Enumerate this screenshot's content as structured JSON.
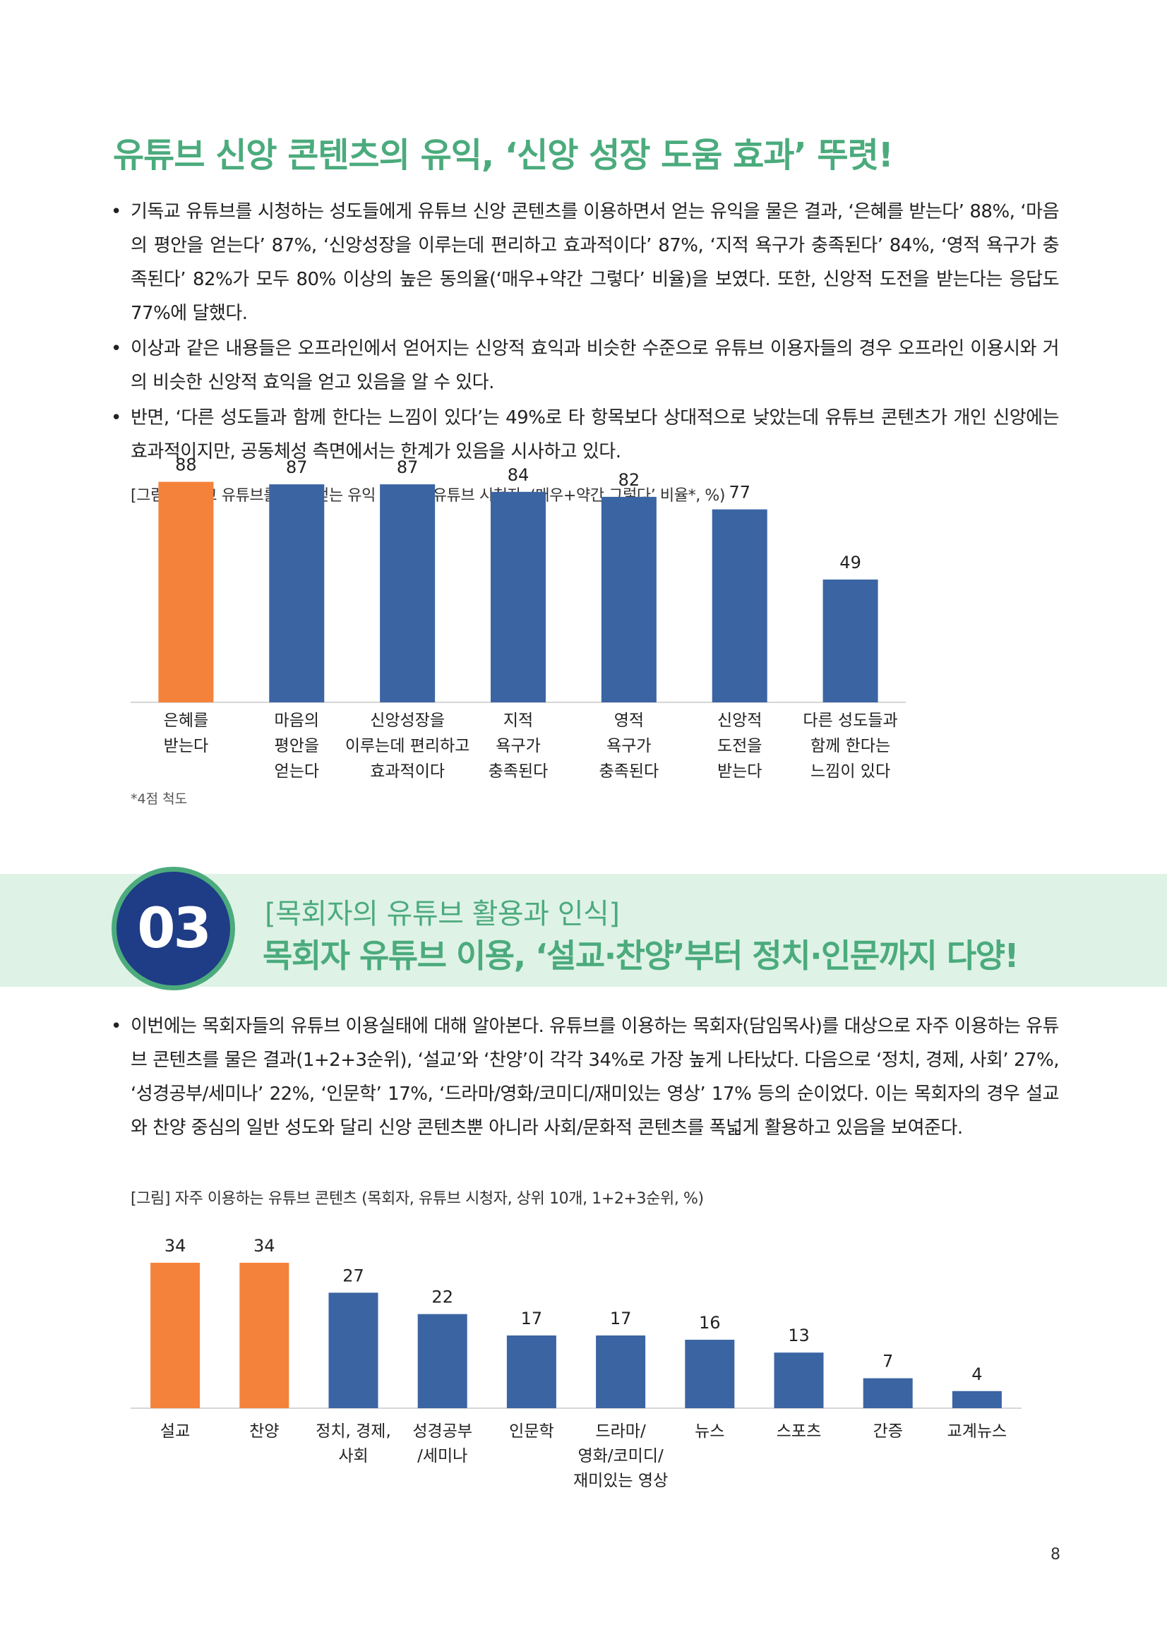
{
  "heading1": "유튜브 신앙 콘텐츠의 유익, ‘신앙 성장 도움 효과’ 뚜렷!",
  "bullets1": [
    "기독교 유튜브를 시청하는 성도들에게 유튜브 신앙 콘텐츠를 이용하면서 얻는 유익을 물은 결과, ‘은혜를 받는다’ 88%, ‘마음의 평안을 얻는다’ 87%, ‘신앙성장을 이루는데 편리하고 효과적이다’ 87%, ‘지적 욕구가 충족된다’ 84%, ‘영적 욕구가 충족된다’ 82%가 모두 80% 이상의 높은 동의율(‘매우+약간 그렇다’ 비율)을 보였다. 또한, 신앙적 도전을 받는다는 응답도 77%에 달했다.",
    "이상과 같은 내용들은 오프라인에서 얻어지는 신앙적 효익과 비슷한 수준으로 유튜브 이용자들의 경우 오프라인 이용시와 거의 비슷한 신앙적 효익을 얻고 있음을 알 수 있다.",
    "반면, ‘다른 성도들과 함께 한다는 느낌이 있다’는 49%로 타 항목보다 상대적으로 낮았는데 유튜브 콘텐츠가 개인 신앙에는 효과적이지만, 공동체성 측면에서는 한계가 있음을 시사하고 있다."
  ],
  "figure1": {
    "caption": "[그림] 기독교 유튜브를 통해 얻는 유익 (기독교 유튜브 시청자, ‘매우+약간 그렇다’ 비율*, %)",
    "footnote": "*4점 척도"
  },
  "section": {
    "number": "03",
    "subtitle": "[목회자의 유튜브 활용과 인식]",
    "title": "목회자 유튜브 이용, ‘설교·찬양’부터 정치·인문까지 다양!"
  },
  "bullets2": [
    "이번에는 목회자들의 유튜브 이용실태에 대해 알아본다. 유튜브를 이용하는 목회자(담임목사)를 대상으로 자주 이용하는 유튜브 콘텐츠를 물은 결과(1+2+3순위), ‘설교’와 ‘찬양’이 각각 34%로 가장 높게 나타났다. 다음으로 ‘정치, 경제, 사회’ 27%, ‘성경공부/세미나’ 22%, ‘인문학’ 17%, ‘드라마/영화/코미디/재미있는 영상’ 17% 등의 순이었다. 이는 목회자의 경우 설교와 찬양 중심의 일반 성도와 달리 신앙 콘텐츠뿐 아니라 사회/문화적 콘텐츠를 폭넓게 활용하고 있음을 보여준다."
  ],
  "figure2": {
    "caption": "[그림] 자주 이용하는 유튜브 콘텐츠 (목회자, 유튜브 시청자, 상위 10개, 1+2+3순위, %)"
  },
  "page_number": "8",
  "colors": {
    "highlight": "#f5823a",
    "bar": "#3b64a3",
    "accent": "#4bab7d",
    "badge": "#1f3c86"
  },
  "chart_data": [
    {
      "type": "bar",
      "categories": [
        [
          "은혜를",
          "받는다"
        ],
        [
          "마음의",
          "평안을",
          "얻는다"
        ],
        [
          "신앙성장을",
          "이루는데 편리하고",
          "효과적이다"
        ],
        [
          "지적",
          "욕구가",
          "충족된다"
        ],
        [
          "영적",
          "욕구가",
          "충족된다"
        ],
        [
          "신앙적",
          "도전을",
          "받는다"
        ],
        [
          "다른 성도들과",
          "함께 한다는",
          "느낌이 있다"
        ]
      ],
      "values": [
        88,
        87,
        87,
        84,
        82,
        77,
        49
      ],
      "highlight": [
        0
      ],
      "ylim": [
        0,
        100
      ]
    },
    {
      "type": "bar",
      "categories": [
        [
          "설교"
        ],
        [
          "찬양"
        ],
        [
          "정치, 경제,",
          "사회"
        ],
        [
          "성경공부",
          "/세미나"
        ],
        [
          "인문학"
        ],
        [
          "드라마/",
          "영화/코미디/",
          "재미있는 영상"
        ],
        [
          "뉴스"
        ],
        [
          "스포츠"
        ],
        [
          "간증"
        ],
        [
          "교계뉴스"
        ]
      ],
      "values": [
        34,
        34,
        27,
        22,
        17,
        17,
        16,
        13,
        7,
        4
      ],
      "highlight": [
        0,
        1
      ],
      "ylim": [
        0,
        40
      ]
    }
  ]
}
